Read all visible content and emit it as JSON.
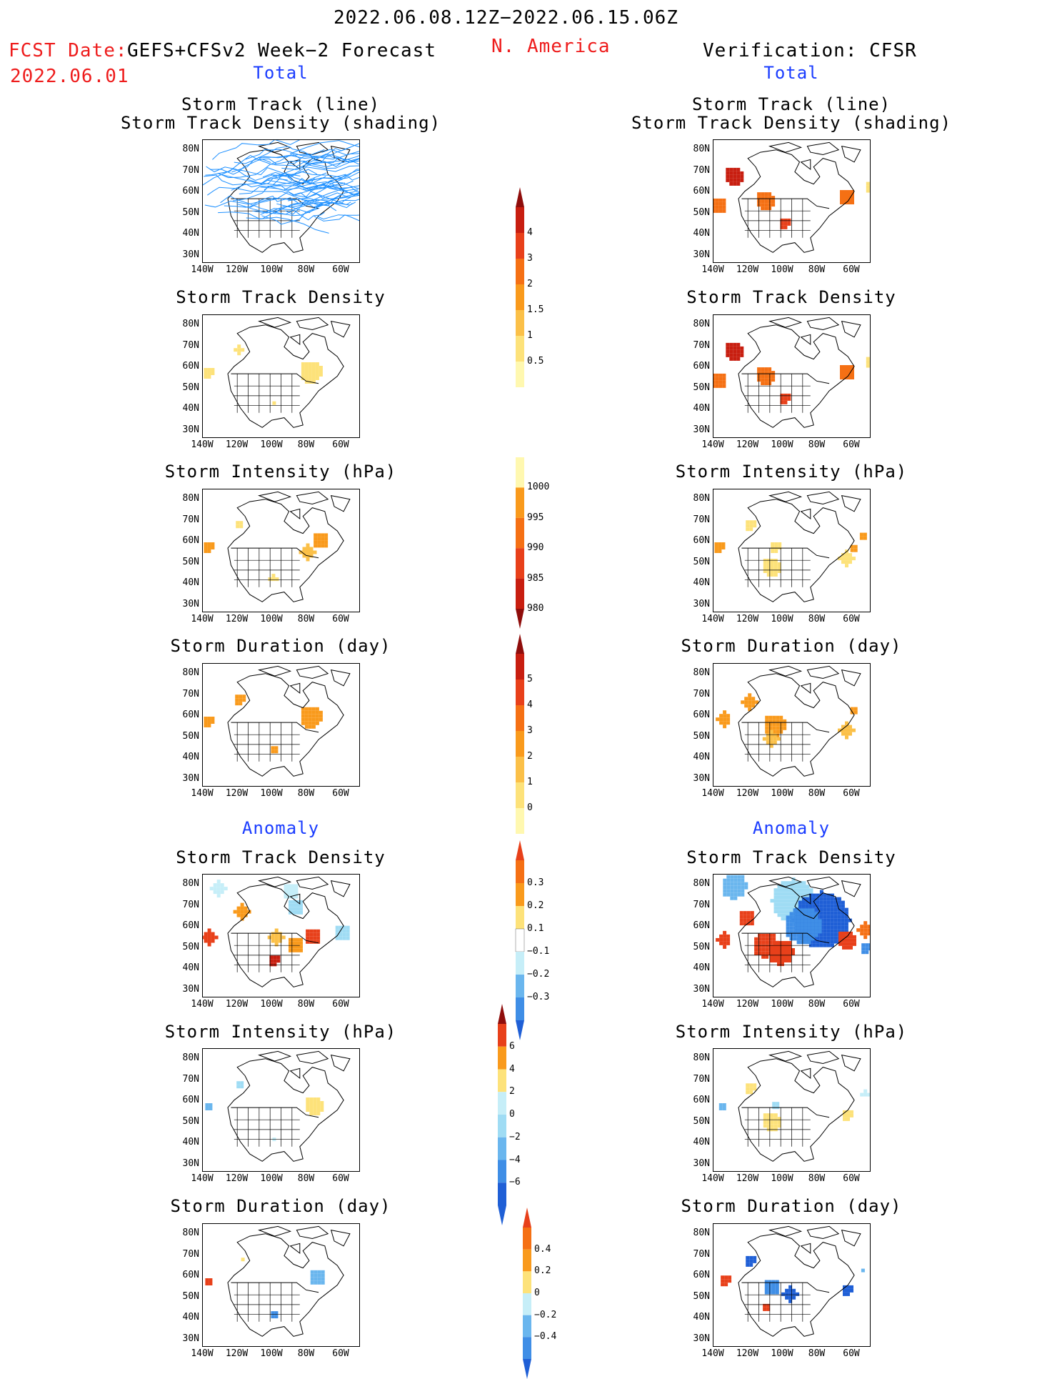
{
  "header": {
    "date_range": "2022.06.08.12Z−2022.06.15.06Z",
    "fcst_date_label": "FCST Date:",
    "fcst_date_value": "2022.06.01",
    "forecast_name": "GEFS+CFSv2 Week−2 Forecast",
    "region": "N. America",
    "verification": "Verification: CFSR"
  },
  "sections": {
    "total": "Total",
    "anomaly": "Anomaly"
  },
  "panel_titles": {
    "track_line_1": "Storm Track (line)",
    "track_line_2": "Storm Track Density (shading)",
    "density": "Storm Track Density",
    "intensity": "Storm Intensity (hPa)",
    "duration": "Storm Duration (day)"
  },
  "axes": {
    "lat_labels": [
      "80N",
      "70N",
      "60N",
      "50N",
      "40N",
      "30N"
    ],
    "lon_labels": [
      "140W",
      "120W",
      "100W",
      "80W",
      "60W"
    ]
  },
  "colorbars": {
    "total_density": [
      "4",
      "3",
      "2",
      "1.5",
      "1",
      "0.5"
    ],
    "total_intensity": [
      "1000",
      "995",
      "990",
      "985",
      "980"
    ],
    "total_duration": [
      "5",
      "4",
      "3",
      "2",
      "1",
      "0"
    ],
    "anom_density": [
      "0.3",
      "0.2",
      "0.1",
      "−0.1",
      "−0.2",
      "−0.3"
    ],
    "anom_intensity": [
      "6",
      "4",
      "2",
      "0",
      "−2",
      "−4",
      "−6"
    ],
    "anom_duration": [
      "0.4",
      "0.2",
      "0",
      "−0.2",
      "−0.4"
    ]
  },
  "colors": {
    "warm": [
      "#fff8b0",
      "#fde27a",
      "#fbc048",
      "#f99a1c",
      "#f57014",
      "#e8401a",
      "#c81e10",
      "#8f0d0b"
    ],
    "cool": [
      "#c6eef8",
      "#9fdcf4",
      "#6ab6ee",
      "#3f8ee6",
      "#1f5fd6"
    ],
    "track_line": "#1e90ff"
  }
}
